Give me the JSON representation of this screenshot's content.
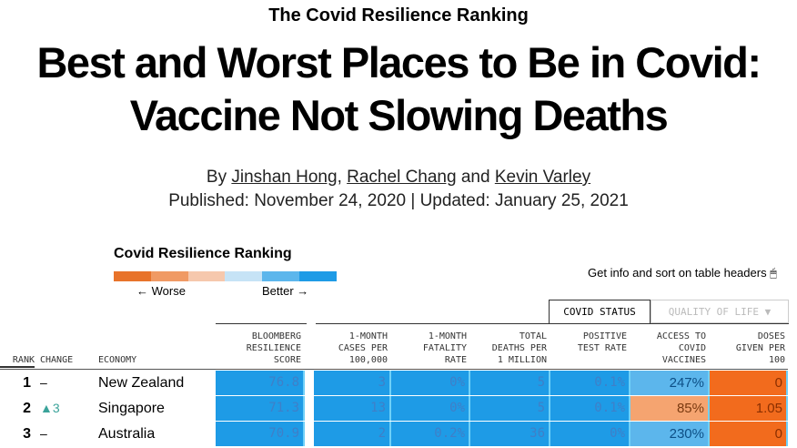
{
  "article": {
    "kicker": "The Covid Resilience Ranking",
    "title": "Best and Worst Places to Be in Covid: Vaccine Not Slowing Deaths",
    "by": "By",
    "authors": [
      "Jinshan Hong",
      "Rachel Chang",
      "Kevin Varley"
    ],
    "sep": ",",
    "and": "and",
    "published": "Published: November 24, 2020 | Updated: January 25, 2021"
  },
  "legend": {
    "title": "Covid Resilience Ranking",
    "worse": "← Worse",
    "better": "Better →",
    "colors": [
      "#e8732a",
      "#f09a64",
      "#f6c8ad",
      "#c6e3f6",
      "#5cb6ec",
      "#1e9be6"
    ]
  },
  "hint": "Get info and sort on table headers 🖱",
  "tabs": {
    "covid": "COVID STATUS",
    "qol": "QUALITY OF LIFE ▼"
  },
  "headers": {
    "rank": "RANK",
    "change": "CHANGE",
    "economy": "ECONOMY",
    "score": "BLOOMBERG\nRESILIENCE\nSCORE",
    "cases": "1-MONTH\nCASES PER\n100,000",
    "fatality": "1-MONTH\nFATALITY\nRATE",
    "deaths": "TOTAL\nDEATHS PER\n1 MILLION",
    "positive": "POSITIVE\nTEST RATE",
    "access": "ACCESS TO\nCOVID\nVACCINES",
    "doses": "DOSES\nGIVEN PER\n100"
  },
  "colors": {
    "blue": "#1e9be6",
    "light_blue": "#5cb6ec",
    "light_orange": "#f5a470",
    "orange": "#f26b1d",
    "change_up": "#3aa39a"
  },
  "rows": [
    {
      "rank": "1",
      "change": "–",
      "economy": "New Zealand",
      "score": "76.8",
      "cases": "3",
      "fatality": "0%",
      "deaths": "5",
      "positive": "0.1%",
      "access": "247%",
      "doses": "0"
    },
    {
      "rank": "2",
      "change": "▲3",
      "economy": "Singapore",
      "score": "71.3",
      "cases": "13",
      "fatality": "0%",
      "deaths": "5",
      "positive": "0.1%",
      "access": "85%",
      "doses": "1.05"
    },
    {
      "rank": "3",
      "change": "–",
      "economy": "Australia",
      "score": "70.9",
      "cases": "2",
      "fatality": "0.2%",
      "deaths": "36",
      "positive": "0%",
      "access": "230%",
      "doses": "0"
    }
  ]
}
